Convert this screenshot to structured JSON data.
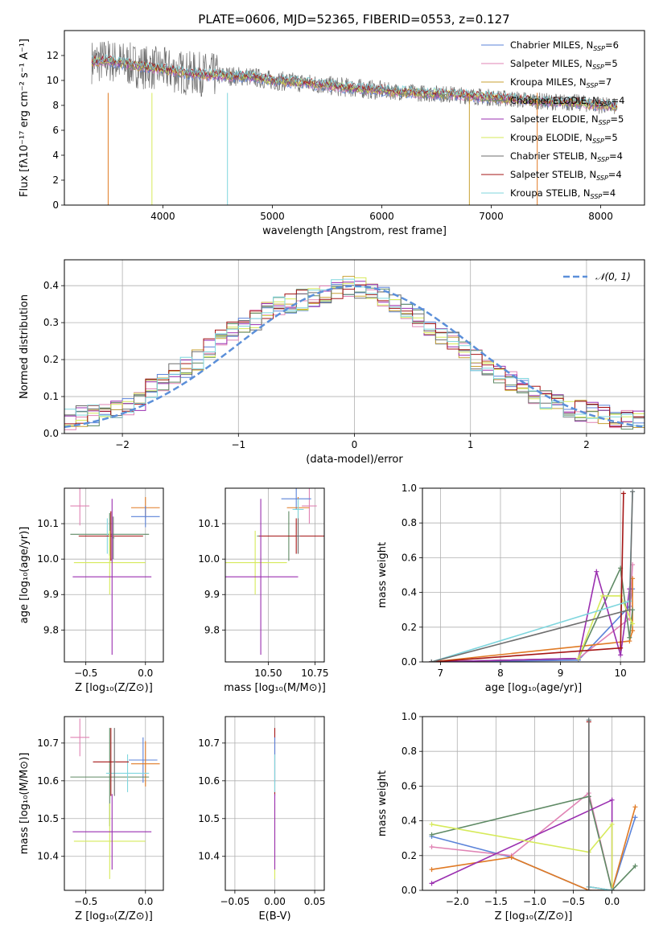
{
  "page": {
    "title": "PLATE=0606, MJD=52365, FIBERID=0553, z=0.127"
  },
  "colors": {
    "Chabrier MILES": "#5b83d9",
    "Salpeter MILES": "#e083b4",
    "Kroupa MILES": "#c8a032",
    "Chabrier ELODIE": "#5f8a65",
    "Salpeter ELODIE": "#9a2fb0",
    "Kroupa ELODIE": "#d6ea5a",
    "Chabrier STELIB": "#6e6e6e",
    "Salpeter STELIB": "#a51616",
    "Kroupa STELIB": "#7fd6de",
    "orange": "#e07a24",
    "gaussian": "#5b8fd9"
  },
  "chart_data": [
    {
      "id": "spectrum",
      "type": "line",
      "title": "",
      "xlabel": "wavelength [Angstrom, rest frame]",
      "ylabel": "Flux [fλ10⁻¹⁷ erg cm⁻² s⁻¹ A⁻¹]",
      "xlim": [
        3100,
        8400
      ],
      "ylim": [
        0,
        14
      ],
      "xticks": [
        4000,
        5000,
        6000,
        7000,
        8000
      ],
      "yticks": [
        0,
        2,
        4,
        6,
        8,
        10,
        12
      ],
      "legend_position": "top-right",
      "legend": [
        "Chabrier MILES, N_SSP=6",
        "Salpeter MILES, N_SSP=5",
        "Kroupa MILES, N_SSP=7",
        "Chabrier ELODIE, N_SSP=4",
        "Salpeter ELODIE, N_SSP=5",
        "Kroupa ELODIE, N_SSP=5",
        "Chabrier STELIB, N_SSP=4",
        "Salpeter STELIB, N_SSP=4",
        "Kroupa STELIB, N_SSP=4"
      ],
      "continuum_x": [
        3350,
        3500,
        3800,
        4000,
        4200,
        4500,
        4800,
        5000,
        5300,
        5600,
        6000,
        6300,
        6600,
        6900,
        7200,
        7500,
        7800,
        8000,
        8150
      ],
      "continuum_y": [
        11.5,
        11.6,
        11.1,
        10.9,
        10.6,
        10.4,
        10.3,
        10.0,
        9.8,
        9.5,
        9.2,
        9.0,
        8.9,
        8.7,
        8.5,
        8.3,
        8.2,
        8.0,
        7.9
      ]
    },
    {
      "id": "residuals",
      "type": "histogram",
      "title": "",
      "xlabel": "(data-model)/error",
      "ylabel": "Normed distribution",
      "xlim": [
        -2.5,
        2.5
      ],
      "ylim": [
        0,
        0.47
      ],
      "xticks": [
        -2,
        -1,
        0,
        1,
        2
      ],
      "yticks": [
        0.0,
        0.1,
        0.2,
        0.3,
        0.4
      ],
      "legend": [
        "𝒩(0, 1)"
      ],
      "legend_position": "top-right",
      "bin_edges_start": -2.6,
      "bin_width": 0.1,
      "mean_values": [
        0.035,
        0.04,
        0.045,
        0.05,
        0.055,
        0.06,
        0.07,
        0.09,
        0.12,
        0.14,
        0.165,
        0.18,
        0.2,
        0.23,
        0.26,
        0.28,
        0.3,
        0.31,
        0.33,
        0.34,
        0.35,
        0.36,
        0.37,
        0.38,
        0.39,
        0.4,
        0.395,
        0.385,
        0.37,
        0.35,
        0.33,
        0.31,
        0.29,
        0.27,
        0.25,
        0.23,
        0.2,
        0.18,
        0.16,
        0.14,
        0.12,
        0.1,
        0.09,
        0.08,
        0.07,
        0.06,
        0.055,
        0.05,
        0.045,
        0.04,
        0.035,
        0.03
      ]
    },
    {
      "id": "age-vs-Z",
      "type": "errorbar",
      "xlabel": "Z [log₁₀(Z/Z⊙)]",
      "ylabel": "age  [log₁₀(age/yr)]",
      "xlim": [
        -0.68,
        0.15
      ],
      "ylim": [
        9.71,
        10.2
      ],
      "xticks": [
        -0.5,
        0.0
      ],
      "xticklabels": [
        "−0.5",
        "0.0"
      ],
      "yticks": [
        9.8,
        9.9,
        10.0,
        10.1
      ],
      "points": [
        {
          "color": "Salpeter MILES",
          "x": -0.55,
          "y": 10.15,
          "xe": 0.08,
          "ye": 0.055
        },
        {
          "color": "Chabrier ELODIE",
          "x": -0.3,
          "y": 10.07,
          "xe": 0.33,
          "ye": 0.06
        },
        {
          "color": "orange",
          "x": 0.0,
          "y": 10.145,
          "xe": 0.12,
          "ye": 0.03
        },
        {
          "color": "Chabrier MILES",
          "x": 0.0,
          "y": 10.12,
          "xe": 0.12,
          "ye": 0.03
        },
        {
          "color": "Kroupa STELIB",
          "x": -0.32,
          "y": 10.065,
          "xe": 0.02,
          "ye": 0.05
        },
        {
          "color": "Salpeter STELIB",
          "x": -0.29,
          "y": 10.065,
          "xe": 0.27,
          "ye": 0.07
        },
        {
          "color": "Chabrier STELIB",
          "x": -0.27,
          "y": 10.06,
          "xe": 0.01,
          "ye": 0.06
        },
        {
          "color": "Kroupa ELODIE",
          "x": -0.3,
          "y": 9.99,
          "xe": 0.3,
          "ye": 0.09
        },
        {
          "color": "Salpeter ELODIE",
          "x": -0.28,
          "y": 9.95,
          "xe": 0.33,
          "ye": 0.22
        }
      ]
    },
    {
      "id": "age-vs-mass",
      "type": "errorbar",
      "xlabel": "mass [log₁₀(M/M⊙)]",
      "ylabel": "",
      "xlim": [
        10.27,
        10.8
      ],
      "ylim": [
        9.71,
        10.2
      ],
      "xticks": [
        10.5,
        10.75
      ],
      "xticklabels": [
        "10.50",
        "10.75"
      ],
      "yticks": [
        9.8,
        9.9,
        10.0,
        10.1
      ],
      "points": [
        {
          "color": "Salpeter MILES",
          "x": 10.72,
          "y": 10.15,
          "xe": 0.04,
          "ye": 0.05
        },
        {
          "color": "Chabrier ELODIE",
          "x": 10.61,
          "y": 10.065,
          "xe": 0.17,
          "ye": 0.07
        },
        {
          "color": "Chabrier MILES",
          "x": 10.65,
          "y": 10.17,
          "xe": 0.08,
          "ye": 0.03
        },
        {
          "color": "orange",
          "x": 10.66,
          "y": 10.145,
          "xe": 0.06,
          "ye": 0.03
        },
        {
          "color": "Kroupa STELIB",
          "x": 10.66,
          "y": 10.14,
          "xe": 0.03,
          "ye": 0.03
        },
        {
          "color": "Salpeter STELIB",
          "x": 10.65,
          "y": 10.065,
          "xe": 0.2,
          "ye": 0.05
        },
        {
          "color": "Chabrier STELIB",
          "x": 10.66,
          "y": 10.065,
          "xe": 0.01,
          "ye": 0.05
        },
        {
          "color": "Kroupa ELODIE",
          "x": 10.43,
          "y": 9.99,
          "xe": 0.17,
          "ye": 0.09
        },
        {
          "color": "Salpeter ELODIE",
          "x": 10.46,
          "y": 9.95,
          "xe": 0.2,
          "ye": 0.22
        }
      ]
    },
    {
      "id": "mass-weight-vs-age",
      "type": "line",
      "xlabel": "age  [log₁₀(age/yr)]",
      "ylabel": "mass weight",
      "xlim": [
        6.7,
        10.4
      ],
      "ylim": [
        0,
        1.0
      ],
      "xticks": [
        7,
        8,
        9,
        10
      ],
      "yticks": [
        0.0,
        0.2,
        0.4,
        0.6,
        0.8,
        1.0
      ],
      "series": [
        {
          "color": "Chabrier MILES",
          "x": [
            6.85,
            9.3,
            10.15,
            10.2
          ],
          "y": [
            0.0,
            0.01,
            0.32,
            0.42
          ]
        },
        {
          "color": "Salpeter MILES",
          "x": [
            6.85,
            9.3,
            10.15,
            10.2
          ],
          "y": [
            0.0,
            0.02,
            0.25,
            0.56
          ]
        },
        {
          "color": "orange",
          "x": [
            6.85,
            10.15,
            10.2,
            10.2
          ],
          "y": [
            0.0,
            0.12,
            0.18,
            0.48
          ]
        },
        {
          "color": "Chabrier ELODIE",
          "x": [
            6.85,
            9.3,
            10.0,
            10.15,
            10.2
          ],
          "y": [
            0.0,
            0.02,
            0.54,
            0.14,
            0.3
          ]
        },
        {
          "color": "Salpeter ELODIE",
          "x": [
            6.85,
            9.3,
            9.6,
            10.0,
            10.15
          ],
          "y": [
            0.0,
            0.02,
            0.52,
            0.04,
            0.42
          ]
        },
        {
          "color": "Kroupa ELODIE",
          "x": [
            9.3,
            9.7,
            10.0,
            10.2
          ],
          "y": [
            0.02,
            0.38,
            0.38,
            0.22
          ]
        },
        {
          "color": "Salpeter STELIB",
          "x": [
            6.85,
            10.0,
            10.05
          ],
          "y": [
            0.0,
            0.08,
            0.97
          ]
        },
        {
          "color": "Kroupa STELIB",
          "x": [
            6.85,
            10.15,
            10.2
          ],
          "y": [
            0.0,
            0.35,
            0.98
          ]
        },
        {
          "color": "Chabrier STELIB",
          "x": [
            6.85,
            10.15,
            10.2
          ],
          "y": [
            0.0,
            0.3,
            0.98
          ]
        }
      ]
    },
    {
      "id": "mass-vs-Z",
      "type": "errorbar",
      "xlabel": "Z [log₁₀(Z/Z⊙)]",
      "ylabel": "mass [log₁₀(M/M⊙)]",
      "xlim": [
        -0.68,
        0.15
      ],
      "ylim": [
        10.31,
        10.77
      ],
      "xticks": [
        -0.5,
        0.0
      ],
      "xticklabels": [
        "−0.5",
        "0.0"
      ],
      "yticks": [
        10.4,
        10.5,
        10.6,
        10.7
      ],
      "points": [
        {
          "color": "Salpeter MILES",
          "x": -0.55,
          "y": 10.715,
          "xe": 0.08,
          "ye": 0.05
        },
        {
          "color": "Chabrier MILES",
          "x": -0.02,
          "y": 10.655,
          "xe": 0.12,
          "ye": 0.06
        },
        {
          "color": "orange",
          "x": 0.0,
          "y": 10.645,
          "xe": 0.12,
          "ye": 0.06
        },
        {
          "color": "Chabrier ELODIE",
          "x": -0.3,
          "y": 10.61,
          "xe": 0.33,
          "ye": 0.13
        },
        {
          "color": "Kroupa STELIB",
          "x": -0.15,
          "y": 10.62,
          "xe": 0.18,
          "ye": 0.05
        },
        {
          "color": "Salpeter STELIB",
          "x": -0.29,
          "y": 10.65,
          "xe": 0.15,
          "ye": 0.09
        },
        {
          "color": "Chabrier STELIB",
          "x": -0.26,
          "y": 10.65,
          "xe": 0.01,
          "ye": 0.09
        },
        {
          "color": "Kroupa ELODIE",
          "x": -0.3,
          "y": 10.44,
          "xe": 0.3,
          "ye": 0.1
        },
        {
          "color": "Salpeter ELODIE",
          "x": -0.28,
          "y": 10.465,
          "xe": 0.33,
          "ye": 0.1
        }
      ]
    },
    {
      "id": "mass-vs-ebv",
      "type": "errorbar",
      "xlabel": "E(B-V)",
      "ylabel": "",
      "xlim": [
        -0.062,
        0.062
      ],
      "ylim": [
        10.31,
        10.77
      ],
      "xticks": [
        -0.05,
        0.0,
        0.05
      ],
      "xticklabels": [
        "−0.05",
        "0.00",
        "0.05"
      ],
      "yticks": [
        10.4,
        10.5,
        10.6,
        10.7
      ],
      "points": [
        {
          "color": "Salpeter STELIB",
          "x": 0.0,
          "y": 10.65,
          "xe": 0.0,
          "ye": 0.09
        },
        {
          "color": "Chabrier MILES",
          "x": 0.0,
          "y": 10.655,
          "xe": 0.0,
          "ye": 0.06
        },
        {
          "color": "Kroupa ELODIE",
          "x": 0.0,
          "y": 10.44,
          "xe": 0.0,
          "ye": 0.1
        },
        {
          "color": "Kroupa STELIB",
          "x": 0.0,
          "y": 10.62,
          "xe": 0.0,
          "ye": 0.05
        },
        {
          "color": "Salpeter ELODIE",
          "x": 0.0,
          "y": 10.465,
          "xe": 0.0,
          "ye": 0.1
        }
      ]
    },
    {
      "id": "mass-weight-vs-Z",
      "type": "line",
      "xlabel": "Z [log₁₀(Z/Z⊙)]",
      "ylabel": "mass weight",
      "xlim": [
        -2.45,
        0.42
      ],
      "ylim": [
        0,
        1.0
      ],
      "xticks": [
        -2.0,
        -1.5,
        -1.0,
        -0.5,
        0.0
      ],
      "xticklabels": [
        "−2.0",
        "−1.5",
        "−1.0",
        "−0.5",
        "0.0"
      ],
      "yticks": [
        0.0,
        0.2,
        0.4,
        0.6,
        0.8,
        1.0
      ],
      "series": [
        {
          "color": "Chabrier MILES",
          "x": [
            -2.33,
            -1.3,
            -0.3,
            0.0,
            0.3
          ],
          "y": [
            0.31,
            0.19,
            0.0,
            0.0,
            0.42
          ]
        },
        {
          "color": "Salpeter MILES",
          "x": [
            -2.33,
            -1.3,
            -0.3,
            0.0
          ],
          "y": [
            0.25,
            0.2,
            0.56,
            0.0
          ]
        },
        {
          "color": "orange",
          "x": [
            -2.33,
            -1.3,
            -0.3,
            0.0,
            0.3
          ],
          "y": [
            0.12,
            0.19,
            0.0,
            0.0,
            0.48
          ]
        },
        {
          "color": "Chabrier ELODIE",
          "x": [
            -2.33,
            -0.3,
            0.0,
            0.3
          ],
          "y": [
            0.32,
            0.54,
            0.0,
            0.14
          ]
        },
        {
          "color": "Salpeter ELODIE",
          "x": [
            -2.33,
            0.0,
            0.0
          ],
          "y": [
            0.04,
            0.52,
            0.0
          ]
        },
        {
          "color": "Kroupa ELODIE",
          "x": [
            -2.33,
            -0.3,
            0.0,
            0.0
          ],
          "y": [
            0.38,
            0.22,
            0.38,
            0.0
          ]
        },
        {
          "color": "Salpeter STELIB",
          "x": [
            -0.3,
            -0.3,
            0.0
          ],
          "y": [
            0.97,
            0.02,
            0.0
          ]
        },
        {
          "color": "Kroupa STELIB",
          "x": [
            -0.3,
            -0.3,
            0.0
          ],
          "y": [
            0.98,
            0.02,
            0.0
          ]
        },
        {
          "color": "Chabrier STELIB",
          "x": [
            -0.3,
            -0.3
          ],
          "y": [
            0.98,
            0.0
          ]
        }
      ]
    }
  ]
}
